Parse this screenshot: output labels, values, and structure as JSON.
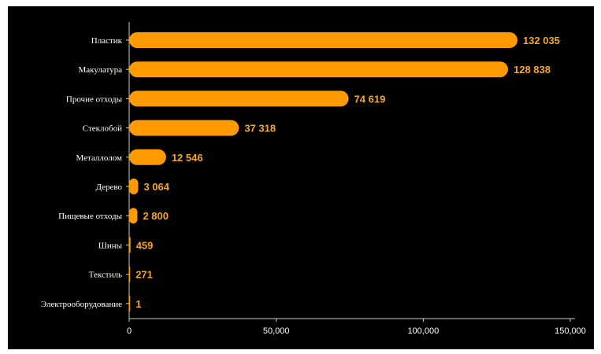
{
  "chart_data": {
    "type": "bar",
    "orientation": "horizontal",
    "categories": [
      "Пластик",
      "Макулатура",
      "Прочие отходы",
      "Стеклобой",
      "Металлолом",
      "Дерево",
      "Пищевые отходы",
      "Шины",
      "Текстиль",
      "Электрооборудование"
    ],
    "values": [
      132035,
      128838,
      74619,
      37318,
      12546,
      3064,
      2800,
      459,
      271,
      1
    ],
    "value_labels": [
      "132 035",
      "128 838",
      "74 619",
      "37 318",
      "12 546",
      "3 064",
      "2 800",
      "459",
      "271",
      "1"
    ],
    "xlim": [
      0,
      150000
    ],
    "xticks": [
      0,
      50000,
      100000,
      150000
    ],
    "xtick_labels": [
      "0",
      "50,000",
      "100,000",
      "150,000"
    ],
    "title": "",
    "xlabel": "",
    "ylabel": "",
    "grid": false,
    "legend": false,
    "colors": {
      "background": "#000000",
      "bar": "#FF9A00",
      "value_label": "#F5A623",
      "axis": "#CCCCCC",
      "text": "#FFFFFF"
    }
  }
}
